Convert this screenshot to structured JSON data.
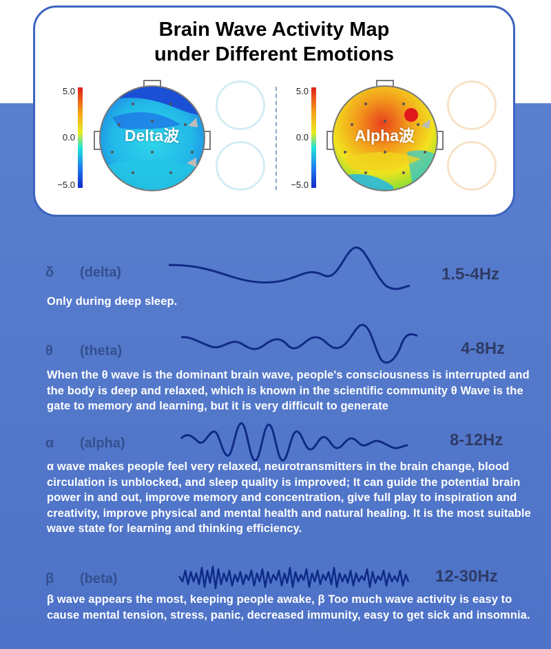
{
  "title_lines": [
    "Brain Wave Activity Map",
    "under Different Emotions"
  ],
  "scale_ticks": [
    "5.0",
    "0.0",
    "−5.0"
  ],
  "maps": [
    {
      "label": "Delta波",
      "palette": "cool"
    },
    {
      "label": "Alpha波",
      "palette": "warm"
    }
  ],
  "waves": [
    {
      "symbol": "δ",
      "name": "(delta)",
      "frequency": "1.5-4Hz",
      "description": "Only during deep sleep."
    },
    {
      "symbol": "θ",
      "name": "(theta)",
      "frequency": "4-8Hz",
      "description": "When the θ wave is the dominant brain wave, people's consciousness is interrupted and the body is deep and relaxed, which is known in the scientific community θ Wave is the gate to memory and learning, but it is very difficult to generate"
    },
    {
      "symbol": "α",
      "name": "(alpha)",
      "frequency": "8-12Hz",
      "description": "α wave makes people feel very relaxed, neurotransmitters in the brain change, blood circulation is unblocked, and sleep quality is improved; It can guide the potential brain power in and out, improve memory and concentration, give full play to inspiration and creativity, improve physical and mental health and natural healing. It is the most suitable wave state for learning and thinking efficiency."
    },
    {
      "symbol": "β",
      "name": "(beta)",
      "frequency": "12-30Hz",
      "description": "β wave appears the most, keeping people awake, β Too much wave activity is easy to cause mental tension, stress, panic, decreased immunity, easy to get sick and insomnia."
    }
  ],
  "colors": {
    "background_blue": "#4d72c7",
    "card_border": "#3c63bf",
    "wave_line": "#0f2a86",
    "label_text": "#344f8f",
    "frequency_text": "#2e3b66"
  }
}
